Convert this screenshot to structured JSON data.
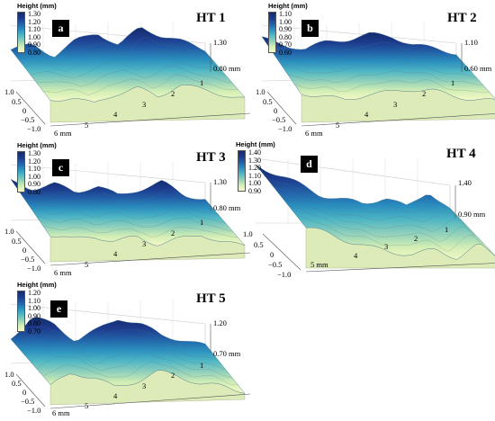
{
  "colormap": [
    "#f6f9c8",
    "#d3eeb4",
    "#8fd0bb",
    "#4fb6c4",
    "#2a8fbf",
    "#2160a8",
    "#1d3a8c",
    "#142c6b"
  ],
  "edge_color": "#e9edb3",
  "panels": [
    {
      "id": "a",
      "title": "HT 1",
      "colorbar": {
        "title": "Height (mm)",
        "ticks": [
          "1.30",
          "1.20",
          "1.10",
          "1.00",
          "0.90",
          "0.80"
        ]
      },
      "z_ticks": {
        "top": "1.30",
        "bottom": "0.80 mm"
      },
      "x_ticks": [
        "1",
        "2",
        "3",
        "4",
        "5",
        "6 mm"
      ],
      "y_ticks": [
        "1.0",
        "0.5",
        "0",
        "−0.5",
        "−1.0"
      ]
    },
    {
      "id": "b",
      "title": "HT 2",
      "colorbar": {
        "title": "Height (mm)",
        "ticks": [
          "1.10",
          "1.00",
          "0.90",
          "0.80",
          "0.70",
          "0.60"
        ]
      },
      "z_ticks": {
        "top": "1.10",
        "bottom": "0.60 mm"
      },
      "x_ticks": [
        "1",
        "2",
        "3",
        "4",
        "5",
        "6 mm"
      ],
      "y_ticks": [
        "1.0",
        "0.5",
        "0",
        "−0.5",
        "−1.0"
      ]
    },
    {
      "id": "c",
      "title": "HT 3",
      "colorbar": {
        "title": "Height (mm)",
        "ticks": [
          "1.30",
          "1.20",
          "1.10",
          "1.00",
          "0.90",
          "0.80"
        ]
      },
      "z_ticks": {
        "top": "1.30",
        "bottom": "0.80 mm"
      },
      "x_ticks": [
        "1",
        "2",
        "3",
        "4",
        "5",
        "6 mm"
      ],
      "y_ticks": [
        "1.0",
        "0.5",
        "0",
        "−0.5",
        "−1.0"
      ]
    },
    {
      "id": "d",
      "title": "HT 4",
      "colorbar": {
        "title": "Height (mm)",
        "ticks": [
          "1.40",
          "1.30",
          "1.20",
          "1.10",
          "1.00",
          "0.90"
        ]
      },
      "z_ticks": {
        "top": "1.40",
        "bottom": "0.90 mm"
      },
      "x_ticks": [
        "1",
        "2",
        "3",
        "4",
        "5 mm"
      ],
      "y_ticks": [
        "1.0",
        "0.5",
        "0",
        "−0.5",
        "−1.0"
      ]
    },
    {
      "id": "e",
      "title": "HT 5",
      "colorbar": {
        "title": "Height (mm)",
        "ticks": [
          "1.20",
          "1.10",
          "1.00",
          "0.90",
          "0.80",
          "0.70"
        ]
      },
      "z_ticks": {
        "top": "1.20",
        "bottom": "0.70 mm"
      },
      "x_ticks": [
        "1",
        "2",
        "3",
        "4",
        "5",
        "6 mm"
      ],
      "y_ticks": [
        "1.0",
        "0.5",
        "0",
        "−0.5",
        "−1.0"
      ]
    }
  ],
  "chart_data": [
    {
      "type": "heatmap",
      "title": "HT 1",
      "zlabel": "Height (mm)",
      "zlim": [
        0.8,
        1.3
      ],
      "xlim": [
        0,
        6
      ],
      "ylim": [
        -1.0,
        1.0
      ],
      "surface_profile": [
        1.08,
        1.12,
        1.02,
        1.15,
        1.22,
        1.1,
        1.26,
        1.18,
        1.12,
        1.05
      ]
    },
    {
      "type": "heatmap",
      "title": "HT 2",
      "zlabel": "Height (mm)",
      "zlim": [
        0.6,
        1.1
      ],
      "xlim": [
        0,
        6
      ],
      "ylim": [
        -1.0,
        1.0
      ],
      "surface_profile": [
        0.98,
        0.92,
        0.88,
        0.94,
        0.96,
        1.0,
        0.98,
        0.9,
        0.86,
        0.82
      ]
    },
    {
      "type": "heatmap",
      "title": "HT 3",
      "zlabel": "Height (mm)",
      "zlim": [
        0.8,
        1.3
      ],
      "xlim": [
        0,
        6
      ],
      "ylim": [
        -1.0,
        1.0
      ],
      "surface_profile": [
        1.15,
        1.08,
        1.12,
        1.04,
        1.1,
        1.0,
        1.06,
        1.12,
        1.0,
        0.96
      ]
    },
    {
      "type": "heatmap",
      "title": "HT 4",
      "zlabel": "Height (mm)",
      "zlim": [
        0.9,
        1.4
      ],
      "xlim": [
        0,
        5
      ],
      "ylim": [
        -1.0,
        1.0
      ],
      "surface_profile": [
        1.35,
        1.28,
        1.2,
        1.12,
        1.08,
        1.05,
        1.1,
        1.02,
        1.15,
        1.0
      ]
    },
    {
      "type": "heatmap",
      "title": "HT 5",
      "zlabel": "Height (mm)",
      "zlim": [
        0.7,
        1.2
      ],
      "xlim": [
        0,
        6
      ],
      "ylim": [
        -1.0,
        1.0
      ],
      "surface_profile": [
        0.92,
        1.08,
        1.02,
        0.88,
        0.96,
        1.06,
        1.0,
        0.9,
        0.86,
        0.8
      ]
    }
  ]
}
